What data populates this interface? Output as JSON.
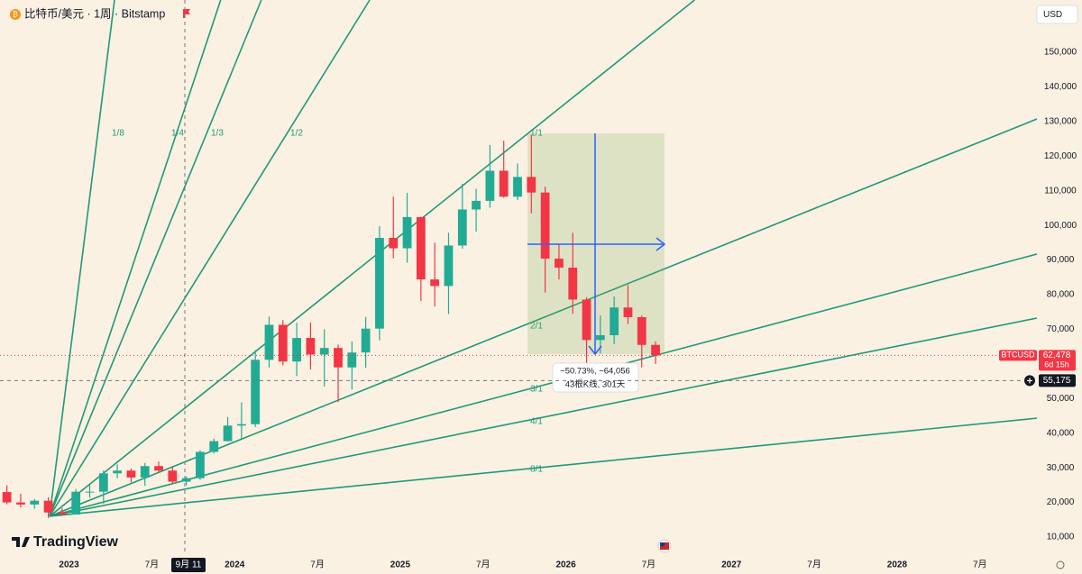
{
  "chart_data": {
    "type": "candlestick",
    "title": "比特币/美元 · 1周 · Bitstamp",
    "currency": "USD",
    "brand": "TradingView",
    "x": [
      "2022-08",
      "2022-09",
      "2022-10",
      "2022-11",
      "2022-12",
      "2023-01",
      "2023-02",
      "2023-03",
      "2023-04",
      "2023-05",
      "2023-06",
      "2023-07",
      "2023-08",
      "2023-09",
      "2023-10",
      "2023-11",
      "2023-12",
      "2024-01",
      "2024-02",
      "2024-03",
      "2024-04",
      "2024-05",
      "2024-06",
      "2024-07",
      "2024-08",
      "2024-09",
      "2024-10",
      "2024-11",
      "2024-12",
      "2025-01",
      "2025-02",
      "2025-03",
      "2025-04",
      "2025-05",
      "2025-06",
      "2025-07",
      "2025-08",
      "2025-09",
      "2025-10",
      "2025-11",
      "2025-12",
      "2026-01",
      "2026-02",
      "2026-03",
      "2026-04",
      "2026-05",
      "2026-06",
      "2026-07"
    ],
    "open": [
      23000,
      20000,
      19400,
      20500,
      17100,
      16500,
      23100,
      23100,
      28400,
      29200,
      27200,
      30500,
      29200,
      26000,
      27000,
      34600,
      37700,
      42200,
      42600,
      61200,
      71300,
      60700,
      67500,
      62700,
      64600,
      59000,
      63300,
      70200,
      96400,
      93400,
      102400,
      84400,
      82500,
      94200,
      104600,
      107100,
      115800,
      108300,
      114000,
      109500,
      90400,
      87800,
      78600,
      66900,
      68300,
      76300,
      73500,
      65500
    ],
    "high": [
      25000,
      22500,
      21000,
      21500,
      18400,
      23900,
      25200,
      29200,
      31000,
      29800,
      31400,
      31800,
      30200,
      27500,
      35100,
      38400,
      44700,
      48900,
      64000,
      73700,
      72700,
      71900,
      71900,
      70000,
      65600,
      66500,
      73600,
      99800,
      108300,
      109400,
      102500,
      95000,
      97900,
      112000,
      110600,
      123200,
      124500,
      117900,
      126200,
      111200,
      94600,
      97900,
      79300,
      74000,
      79500,
      82800,
      74000,
      66500
    ],
    "low": [
      19500,
      18500,
      18200,
      15500,
      16300,
      16500,
      21400,
      19600,
      27000,
      25800,
      24800,
      28800,
      25300,
      24900,
      26500,
      34100,
      37600,
      38500,
      41800,
      59000,
      59600,
      56500,
      58400,
      53500,
      49000,
      52600,
      58900,
      66800,
      90500,
      89200,
      78200,
      76600,
      74400,
      93300,
      98200,
      105100,
      108000,
      107300,
      103500,
      80600,
      84400,
      74500,
      60100,
      63000,
      65700,
      71500,
      59000,
      60000
    ],
    "close": [
      20000,
      19400,
      20500,
      17100,
      16500,
      23100,
      23100,
      28400,
      29200,
      27200,
      30500,
      29200,
      26000,
      27000,
      34600,
      37700,
      42200,
      42600,
      61200,
      71300,
      60700,
      67500,
      62700,
      64600,
      59000,
      63300,
      70200,
      96400,
      93400,
      102400,
      84400,
      82500,
      94200,
      104600,
      107100,
      115800,
      108300,
      114000,
      109500,
      90400,
      87800,
      78600,
      66900,
      68300,
      76300,
      73500,
      65500,
      62478
    ],
    "up_color": "#22ab94",
    "down_color": "#f23645",
    "xlim": [
      "2022-08",
      "2028-11"
    ],
    "xticks": [
      {
        "value": "2023-01",
        "label": "2023"
      },
      {
        "value": "2023-07",
        "label": "7月"
      },
      {
        "value": "2024-01",
        "label": "2024"
      },
      {
        "value": "2024-07",
        "label": "7月"
      },
      {
        "value": "2025-01",
        "label": "2025"
      },
      {
        "value": "2025-07",
        "label": "7月"
      },
      {
        "value": "2026-01",
        "label": "2026"
      },
      {
        "value": "2026-07",
        "label": "7月"
      },
      {
        "value": "2027-01",
        "label": "2027"
      },
      {
        "value": "2027-07",
        "label": "7月"
      },
      {
        "value": "2028-01",
        "label": "2028"
      },
      {
        "value": "2028-07",
        "label": "7月"
      }
    ],
    "ylim": [
      4800,
      165100
    ],
    "yticks": [
      {
        "value": 10000,
        "label": "10,000"
      },
      {
        "value": 20000,
        "label": "20,000"
      },
      {
        "value": 30000,
        "label": "30,000"
      },
      {
        "value": 40000,
        "label": "40,000"
      },
      {
        "value": 50000,
        "label": "50,000"
      },
      {
        "value": 70000,
        "label": "70,000"
      },
      {
        "value": 80000,
        "label": "80,000"
      },
      {
        "value": 90000,
        "label": "90,000"
      },
      {
        "value": 100000,
        "label": "100,000"
      },
      {
        "value": 110000,
        "label": "110,000"
      },
      {
        "value": 120000,
        "label": "120,000"
      },
      {
        "value": 130000,
        "label": "130,000"
      },
      {
        "value": 140000,
        "label": "140,000"
      },
      {
        "value": 150000,
        "label": "150,000"
      }
    ],
    "last_price": {
      "symbol": "BTCUSD",
      "value": 62478,
      "label": "62,478",
      "countdown": "6d 15h"
    },
    "crosshair": {
      "x_label": "9月 11",
      "y_value": 55175,
      "y_label": "55,175"
    },
    "gann_fan_labels": [
      "1/8",
      "1/4",
      "1/3",
      "1/2",
      "1/1",
      "2/1",
      "3/1",
      "4/1",
      "8/1"
    ],
    "measure": {
      "line1": "−50.73%, −64,056",
      "line2": "43根K线, 301天"
    }
  }
}
